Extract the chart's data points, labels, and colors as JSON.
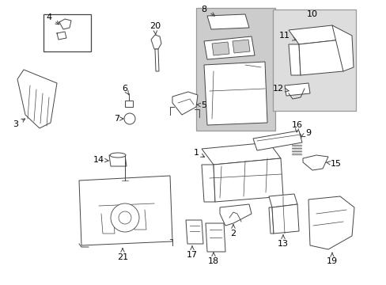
{
  "bg": "#ffffff",
  "lc": "#444444",
  "lw": 0.7,
  "fig_w": 4.89,
  "fig_h": 3.6,
  "dpi": 100,
  "shaded_bg": "#cccccc",
  "box_bg": "#dddddd"
}
